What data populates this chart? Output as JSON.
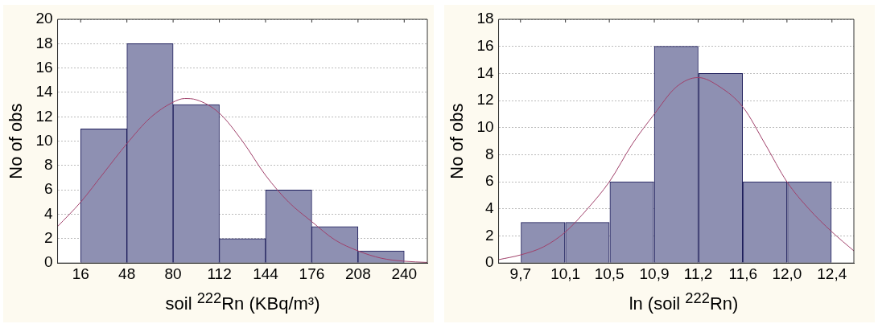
{
  "chart_data": [
    {
      "type": "histogram",
      "xlabel": "soil $^{222}$Rn (KBq/m³)",
      "ylabel": "No of obs",
      "bins": [
        16,
        48,
        80,
        112,
        144,
        176,
        208,
        240
      ],
      "values": [
        11,
        18,
        13,
        2,
        6,
        3,
        1
      ],
      "color": "#8e90b2",
      "xlim": [
        0,
        256
      ],
      "xticks": [
        16,
        48,
        80,
        112,
        144,
        176,
        208,
        240
      ],
      "ylim": [
        0,
        20
      ],
      "yticks": [
        0,
        2,
        4,
        6,
        8,
        10,
        12,
        14,
        16,
        18,
        20
      ],
      "grid": "y",
      "series": [
        {
          "type": "line",
          "color": "#a0406a",
          "x": [
            0,
            16,
            32,
            48,
            64,
            80,
            88,
            96,
            112,
            128,
            144,
            160,
            176,
            192,
            208,
            224,
            240,
            256
          ],
          "values": [
            3,
            5,
            7.4,
            9.8,
            11.9,
            13.2,
            13.5,
            13.4,
            12.3,
            10,
            7.2,
            5,
            3.4,
            1.9,
            1,
            0.4,
            0.15,
            0.05
          ]
        }
      ]
    },
    {
      "type": "histogram",
      "xlabel": "ln (soil $^{222}$Rn)",
      "ylabel": "No of obs",
      "bins": [
        9.7,
        10.09,
        10.47,
        10.86,
        11.24,
        11.63,
        12.01,
        12.4
      ],
      "values": [
        3,
        3,
        6,
        16,
        14,
        6,
        6
      ],
      "color": "#8e90b2",
      "xlim": [
        9.51,
        12.59
      ],
      "xticks": [
        {
          "value": 9.7,
          "label": "9,7"
        },
        {
          "value": 10.09,
          "label": "10,1"
        },
        {
          "value": 10.47,
          "label": "10,5"
        },
        {
          "value": 10.86,
          "label": "10,9"
        },
        {
          "value": 11.24,
          "label": "11,2"
        },
        {
          "value": 11.63,
          "label": "11,6"
        },
        {
          "value": 12.01,
          "label": "12,0"
        },
        {
          "value": 12.4,
          "label": "12,4"
        }
      ],
      "ylim": [
        0,
        18
      ],
      "yticks": [
        0,
        2,
        4,
        6,
        8,
        10,
        12,
        14,
        16,
        18
      ],
      "grid": "y",
      "series": [
        {
          "type": "line",
          "color": "#a0406a",
          "x": [
            9.51,
            9.7,
            9.9,
            10.09,
            10.28,
            10.47,
            10.67,
            10.86,
            11.05,
            11.24,
            11.43,
            11.63,
            11.82,
            12.01,
            12.2,
            12.4,
            12.59
          ],
          "values": [
            0.25,
            0.6,
            1.2,
            2.3,
            4,
            6,
            8.8,
            11,
            13,
            13.7,
            13,
            11.5,
            8.8,
            6,
            4,
            2.3,
            0.9
          ]
        }
      ]
    }
  ]
}
